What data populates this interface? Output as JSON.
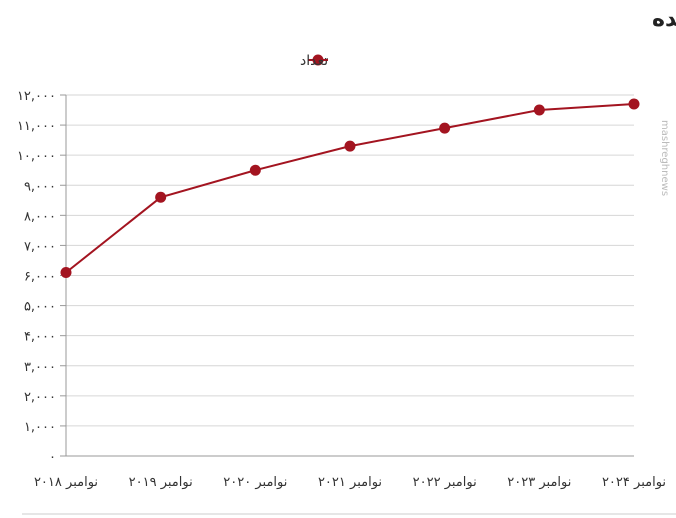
{
  "chart_data": {
    "type": "line",
    "title": "سانتریفیوژهای نصب شده",
    "xlabel": "",
    "ylabel": "",
    "categories": [
      "نوامبر ۲۰۱۸",
      "نوامبر ۲۰۱۹",
      "نوامبر ۲۰۲۰",
      "نوامبر ۲۰۲۱",
      "نوامبر ۲۰۲۲",
      "نوامبر ۲۰۲۳",
      "نوامبر ۲۰۲۴"
    ],
    "series": [
      {
        "name": "تعداد",
        "values": [
          6100,
          8600,
          9500,
          10300,
          10900,
          11500,
          11700
        ]
      }
    ],
    "yticks": [
      "۰",
      "۱,۰۰۰",
      "۲,۰۰۰",
      "۳,۰۰۰",
      "۴,۰۰۰",
      "۵,۰۰۰",
      "۶,۰۰۰",
      "۷,۰۰۰",
      "۸,۰۰۰",
      "۹,۰۰۰",
      "۱۰,۰۰۰",
      "۱۱,۰۰۰",
      "۱۲,۰۰۰"
    ],
    "ylim": [
      0,
      12000
    ],
    "grid": "horizontal",
    "legend_position": "top",
    "colors": {
      "line": "#a31420",
      "marker": "#a31420",
      "grid": "#d6d6d6",
      "axis": "#999999"
    }
  },
  "watermark": "mashreghnews"
}
